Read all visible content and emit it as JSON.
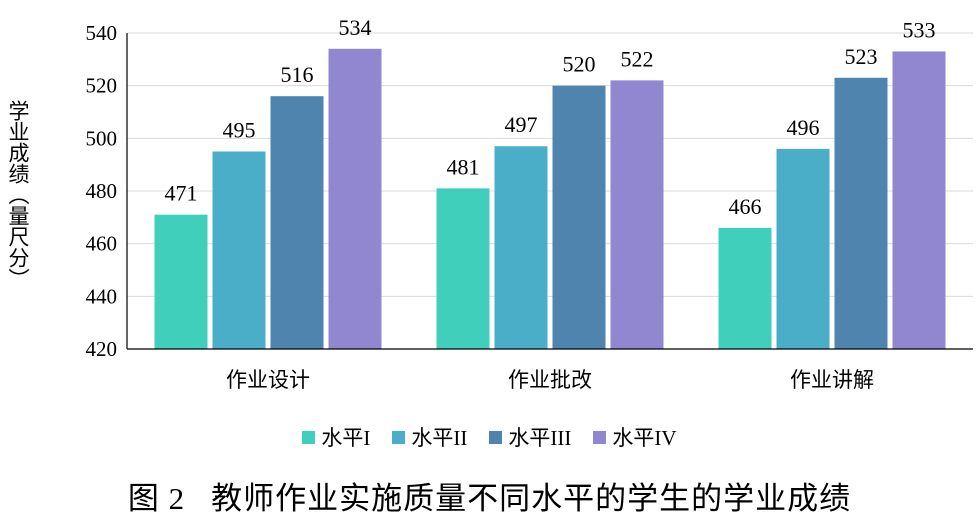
{
  "chart_data": {
    "type": "bar",
    "title": "",
    "ylabel": "学业成绩（量尺分）",
    "xlabel": "",
    "categories": [
      "作业设计",
      "作业批改",
      "作业讲解"
    ],
    "series": [
      {
        "name": "水平I",
        "color": "#40cfbb",
        "values": [
          471,
          481,
          466
        ]
      },
      {
        "name": "水平II",
        "color": "#4aaec8",
        "values": [
          495,
          497,
          496
        ]
      },
      {
        "name": "水平III",
        "color": "#4e84ae",
        "values": [
          516,
          520,
          523
        ]
      },
      {
        "name": "水平IV",
        "color": "#9187d0",
        "values": [
          534,
          522,
          533
        ]
      }
    ],
    "ylim": [
      420,
      540
    ],
    "yticks": [
      420,
      440,
      460,
      480,
      500,
      520,
      540
    ],
    "grid": true,
    "legend": "bottom"
  },
  "caption": {
    "number": "图 2",
    "text": "教师作业实施质量不同水平的学生的学业成绩"
  }
}
